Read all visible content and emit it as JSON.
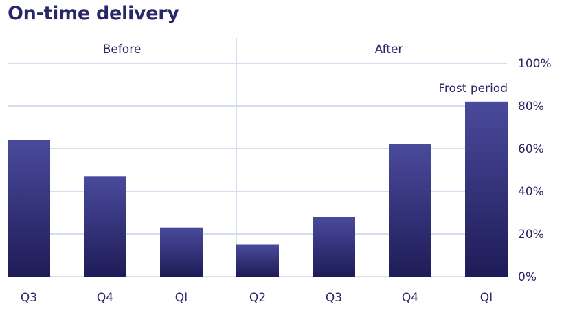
{
  "chart_data": {
    "type": "bar",
    "title": "On-time delivery",
    "categories": [
      "Q3",
      "Q4",
      "QI",
      "Q2",
      "Q3",
      "Q4",
      "QI"
    ],
    "values": [
      64,
      47,
      23,
      15,
      28,
      62,
      82
    ],
    "ylim": [
      0,
      100
    ],
    "yticks": [
      "0%",
      "20%",
      "40%",
      "60%",
      "80%",
      "100%"
    ],
    "groups": [
      {
        "label": "Before",
        "count": 3
      },
      {
        "label": "After",
        "count": 4
      }
    ],
    "annotation": "Frost period",
    "grid": true,
    "colors": {
      "bar_top": "#4a4a9c",
      "bar_bottom": "#1e1c57",
      "grid": "#d6dcf2",
      "text": "#2a2766"
    }
  }
}
